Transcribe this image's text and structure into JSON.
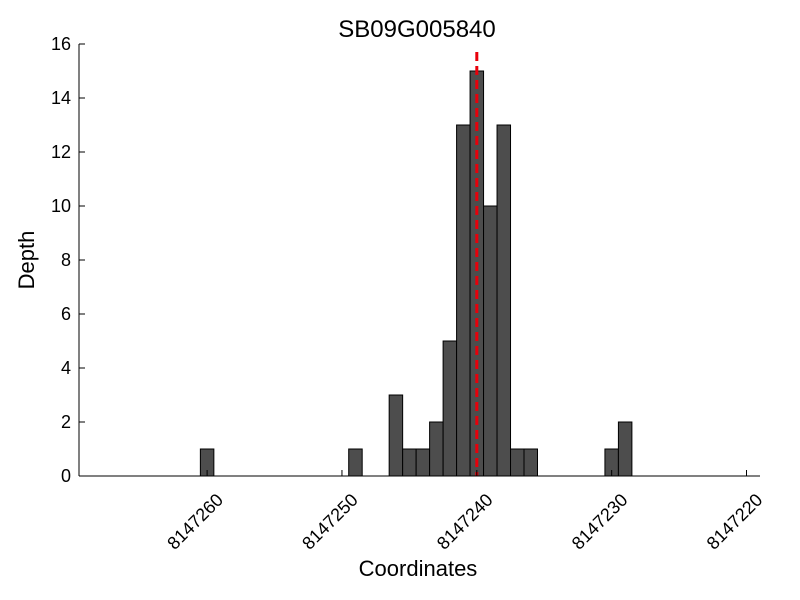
{
  "chart_data": {
    "type": "bar",
    "title": "SB09G005840",
    "xlabel": "Coordinates",
    "ylabel": "Depth",
    "x_reversed": true,
    "xlim": [
      8147269.5,
      8147219
    ],
    "ylim": [
      0,
      16
    ],
    "xticks": [
      8147260,
      8147250,
      8147240,
      8147230,
      8147220
    ],
    "xtick_labels": [
      "8147260",
      "8147250",
      "8147240",
      "8147230",
      "8147220"
    ],
    "yticks": [
      0,
      2,
      4,
      6,
      8,
      10,
      12,
      14,
      16
    ],
    "ytick_labels": [
      "0",
      "2",
      "4",
      "6",
      "8",
      "10",
      "12",
      "14",
      "16"
    ],
    "x": [
      8147260,
      8147249,
      8147246,
      8147245,
      8147244,
      8147243,
      8147242,
      8147241,
      8147240,
      8147239,
      8147238,
      8147237,
      8147236,
      8147230,
      8147229
    ],
    "values": [
      1,
      1,
      3,
      1,
      1,
      2,
      5,
      13,
      15,
      10,
      13,
      1,
      1,
      1,
      2
    ],
    "marker_x": 8147240,
    "grid": false,
    "colors": {
      "bar": "#4d4d4d",
      "bar_edge": "#000000",
      "marker": "#e8000b"
    }
  }
}
